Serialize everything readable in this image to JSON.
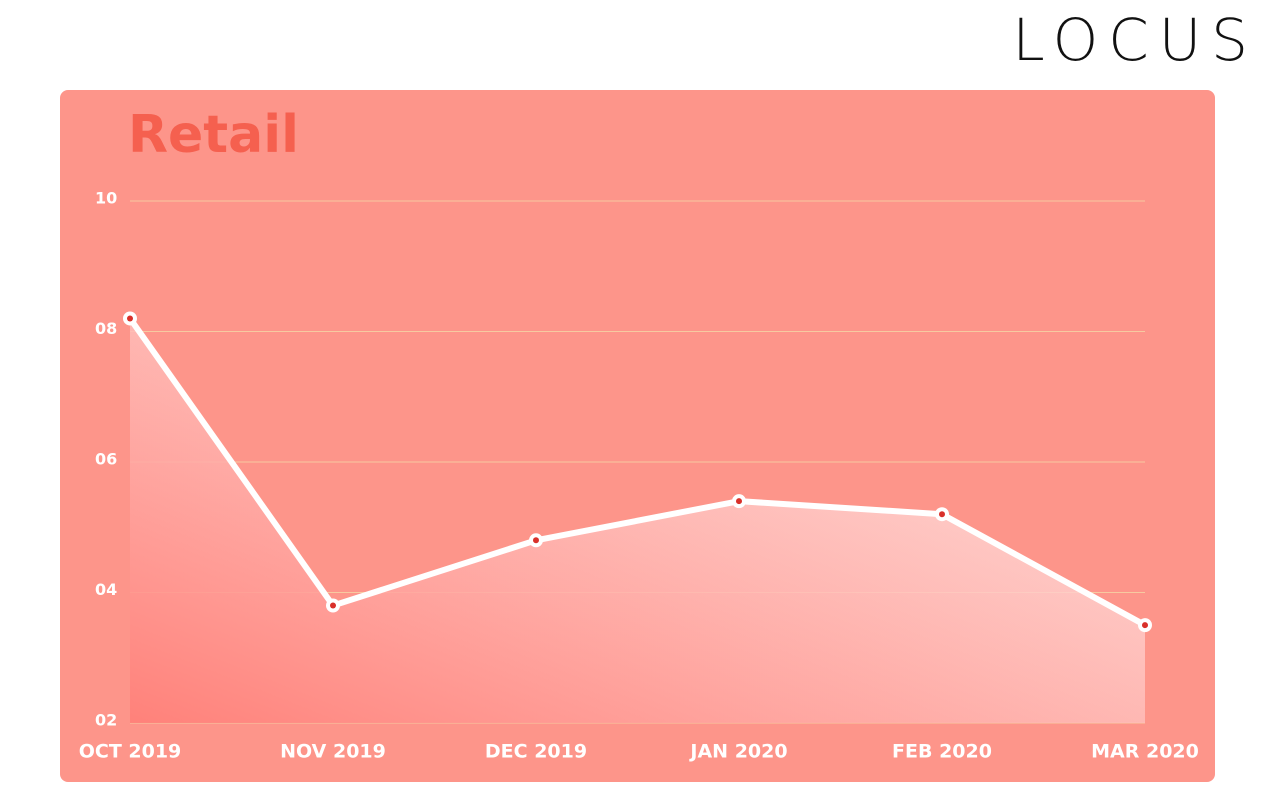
{
  "logo": "LOCUS",
  "chart_data": {
    "type": "line",
    "title": "Retail",
    "categories": [
      "OCT 2019",
      "NOV 2019",
      "DEC 2019",
      "JAN 2020",
      "FEB 2020",
      "MAR 2020"
    ],
    "values": [
      8.2,
      3.8,
      4.8,
      5.4,
      5.2,
      3.5
    ],
    "color": "#ffffff",
    "point_color": "#d9302a",
    "ylim": [
      2,
      10
    ],
    "yticks": [
      {
        "value": 2,
        "label": "02"
      },
      {
        "value": 4,
        "label": "04"
      },
      {
        "value": 6,
        "label": "06"
      },
      {
        "value": 8,
        "label": "08"
      },
      10
    ],
    "grid": true
  }
}
